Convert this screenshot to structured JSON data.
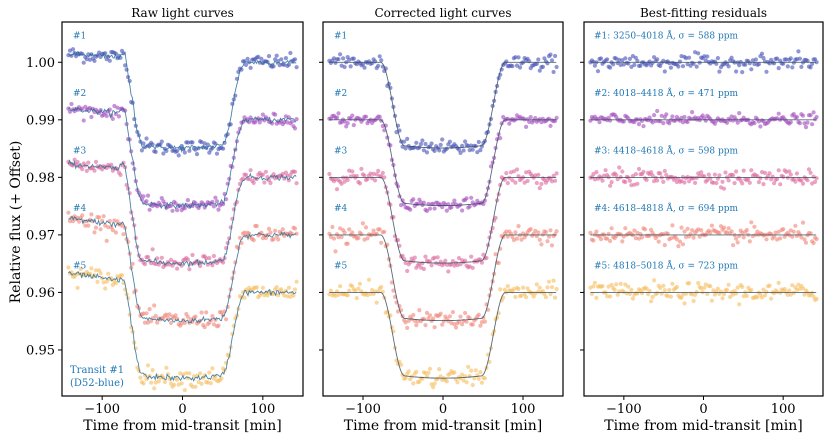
{
  "figure": {
    "ylabel": "Relative flux (+ Offset)",
    "note_lines": [
      "Transit #1",
      "(D52-blue)"
    ]
  },
  "chart_data": [
    {
      "type": "scatter",
      "title": "Raw light curves",
      "xlabel": "Time from mid-transit [min]",
      "ylabel": "Relative flux (+ Offset)",
      "xlim": [
        -150,
        150
      ],
      "ylim": [
        0.942,
        1.007
      ],
      "xticks": [
        -100,
        0,
        100
      ],
      "xtick_labels": [
        "−100",
        "0",
        "100"
      ],
      "yticks": [
        0.95,
        0.96,
        0.97,
        0.98,
        0.99,
        1.0
      ],
      "ytick_labels": [
        "0.95",
        "0.96",
        "0.97",
        "0.98",
        "0.99",
        "1.00"
      ],
      "series": [
        {
          "label": "#1",
          "color": "#4a55b8",
          "offset": 1.0
        },
        {
          "label": "#2",
          "color": "#a44fc0",
          "offset": 0.99
        },
        {
          "label": "#3",
          "color": "#dd6a9e",
          "offset": 0.98
        },
        {
          "label": "#4",
          "color": "#f0887a",
          "offset": 0.97
        },
        {
          "label": "#5",
          "color": "#f7bf63",
          "offset": 0.96
        }
      ]
    },
    {
      "type": "scatter",
      "title": "Corrected light curves",
      "xlabel": "Time from mid-transit [min]",
      "xlim": [
        -150,
        150
      ],
      "ylim": [
        0.942,
        1.007
      ],
      "xticks": [
        -100,
        0,
        100
      ],
      "xtick_labels": [
        "−100",
        "0",
        "100"
      ],
      "series": [
        {
          "label": "#1",
          "color": "#4a55b8",
          "offset": 1.0
        },
        {
          "label": "#2",
          "color": "#a44fc0",
          "offset": 0.99
        },
        {
          "label": "#3",
          "color": "#dd6a9e",
          "offset": 0.98
        },
        {
          "label": "#4",
          "color": "#f0887a",
          "offset": 0.97
        },
        {
          "label": "#5",
          "color": "#f7bf63",
          "offset": 0.96
        }
      ]
    },
    {
      "type": "scatter",
      "title": "Best-fitting residuals",
      "xlabel": "Time from mid-transit [min]",
      "xlim": [
        -150,
        150
      ],
      "ylim": [
        0.942,
        1.007
      ],
      "xticks": [
        -100,
        0,
        100
      ],
      "xtick_labels": [
        "−100",
        "0",
        "100"
      ],
      "series": [
        {
          "label": "#1: 3250–4018 Å, σ = 588 ppm",
          "color": "#4a55b8",
          "offset": 1.0,
          "rms_ppm": 588
        },
        {
          "label": "#2: 4018–4418 Å, σ = 471 ppm",
          "color": "#a44fc0",
          "offset": 0.99,
          "rms_ppm": 471
        },
        {
          "label": "#3: 4418–4618 Å, σ = 598 ppm",
          "color": "#dd6a9e",
          "offset": 0.98,
          "rms_ppm": 598
        },
        {
          "label": "#4: 4618–4818 Å, σ = 694 ppm",
          "color": "#f0887a",
          "offset": 0.97,
          "rms_ppm": 694
        },
        {
          "label": "#5: 4818–5018 Å, σ = 723 ppm",
          "color": "#f7bf63",
          "offset": 0.96,
          "rms_ppm": 723
        }
      ]
    }
  ]
}
